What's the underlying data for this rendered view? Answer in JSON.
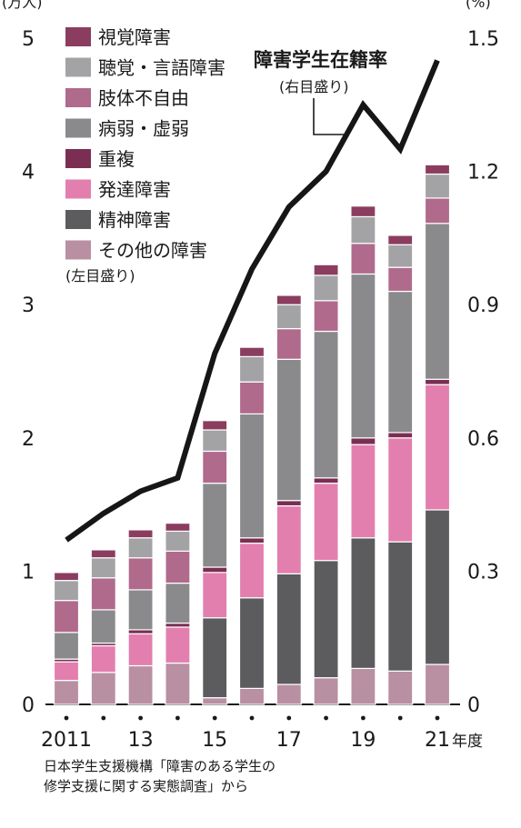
{
  "chart_data": {
    "type": "bar",
    "stacked": true,
    "categories": [
      "2011",
      "2012",
      "2013",
      "2014",
      "2015",
      "2016",
      "2017",
      "2018",
      "2019",
      "2020",
      "2021"
    ],
    "x_tick_labels": [
      "2011",
      "",
      "13",
      "",
      "15",
      "",
      "17",
      "",
      "19",
      "",
      "21"
    ],
    "x_unit_label": "年度",
    "y_left": {
      "unit_label": "(万人)",
      "ylim": [
        0,
        5
      ],
      "ticks": [
        "0",
        "1",
        "2",
        "3",
        "4",
        "5"
      ],
      "note": "(左目盛り)"
    },
    "y_right": {
      "unit_label": "(%)",
      "ylim": [
        0,
        1.5
      ],
      "ticks": [
        "0",
        "0.3",
        "0.6",
        "0.9",
        "1.2",
        "1.5"
      ],
      "note": "(右目盛り)"
    },
    "series": [
      {
        "name": "その他の障害",
        "color": "#b98fa2",
        "values": [
          0.18,
          0.24,
          0.29,
          0.31,
          0.05,
          0.12,
          0.15,
          0.2,
          0.27,
          0.25,
          0.3
        ]
      },
      {
        "name": "精神障害",
        "color": "#5c5c5e",
        "values": [
          0.0,
          0.0,
          0.0,
          0.0,
          0.6,
          0.68,
          0.83,
          0.88,
          0.98,
          0.97,
          1.16
        ]
      },
      {
        "name": "発達障害",
        "color": "#e27fae",
        "values": [
          0.14,
          0.2,
          0.24,
          0.27,
          0.34,
          0.41,
          0.51,
          0.58,
          0.7,
          0.78,
          0.94
        ]
      },
      {
        "name": "重複",
        "color": "#7a2f52",
        "values": [
          0.02,
          0.02,
          0.03,
          0.03,
          0.04,
          0.04,
          0.04,
          0.04,
          0.05,
          0.04,
          0.04
        ]
      },
      {
        "name": "病弱・虚弱",
        "color": "#8a8a8d",
        "values": [
          0.2,
          0.25,
          0.3,
          0.3,
          0.63,
          0.93,
          1.06,
          1.1,
          1.23,
          1.06,
          1.17
        ]
      },
      {
        "name": "肢体不自由",
        "color": "#b06a8c",
        "values": [
          0.24,
          0.24,
          0.24,
          0.24,
          0.24,
          0.24,
          0.23,
          0.23,
          0.23,
          0.18,
          0.19
        ]
      },
      {
        "name": "聴覚・言語障害",
        "color": "#a3a3a6",
        "values": [
          0.15,
          0.15,
          0.15,
          0.15,
          0.16,
          0.19,
          0.18,
          0.19,
          0.2,
          0.17,
          0.18
        ]
      },
      {
        "name": "視覚障害",
        "color": "#8b3d5f",
        "values": [
          0.06,
          0.06,
          0.06,
          0.06,
          0.07,
          0.07,
          0.07,
          0.08,
          0.08,
          0.07,
          0.07
        ]
      }
    ],
    "line": {
      "name": "障害学生在籍率",
      "note": "(右目盛り)",
      "axis": "right",
      "values": [
        0.37,
        0.43,
        0.48,
        0.51,
        0.79,
        0.98,
        1.12,
        1.2,
        1.35,
        1.25,
        1.45
      ]
    }
  },
  "source_lines": [
    "日本学生支援機構「障害のある学生の",
    "修学支援に関する実態調査」から"
  ]
}
